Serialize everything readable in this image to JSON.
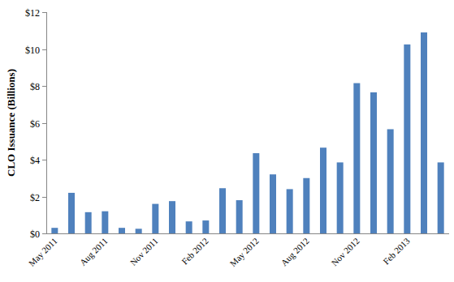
{
  "chart_data": {
    "type": "bar",
    "y_label": "CLO Issuance (Billions)",
    "categories": [
      "May 2011",
      null,
      null,
      "Aug 2011",
      null,
      null,
      "Nov 2011",
      null,
      null,
      "Feb 2012",
      null,
      null,
      "May 2012",
      null,
      null,
      "Aug 2012",
      null,
      null,
      "Nov 2012",
      null,
      null,
      "Feb 2013",
      null,
      null
    ],
    "values": [
      0.3,
      2.2,
      1.15,
      1.2,
      0.3,
      0.25,
      1.6,
      1.75,
      0.65,
      0.7,
      2.45,
      1.8,
      4.35,
      3.2,
      2.4,
      3.0,
      4.65,
      3.85,
      8.15,
      7.65,
      5.65,
      10.25,
      10.9,
      3.85
    ],
    "color": "#4f81bd",
    "ylim": [
      0,
      12
    ],
    "yticks": [
      {
        "value": 0,
        "label": "$0"
      },
      {
        "value": 2,
        "label": "$2"
      },
      {
        "value": 4,
        "label": "$4"
      },
      {
        "value": 6,
        "label": "$6"
      },
      {
        "value": 8,
        "label": "$8"
      },
      {
        "value": 10,
        "label": "$10"
      },
      {
        "value": 12,
        "label": "$12"
      }
    ],
    "grid": false
  }
}
